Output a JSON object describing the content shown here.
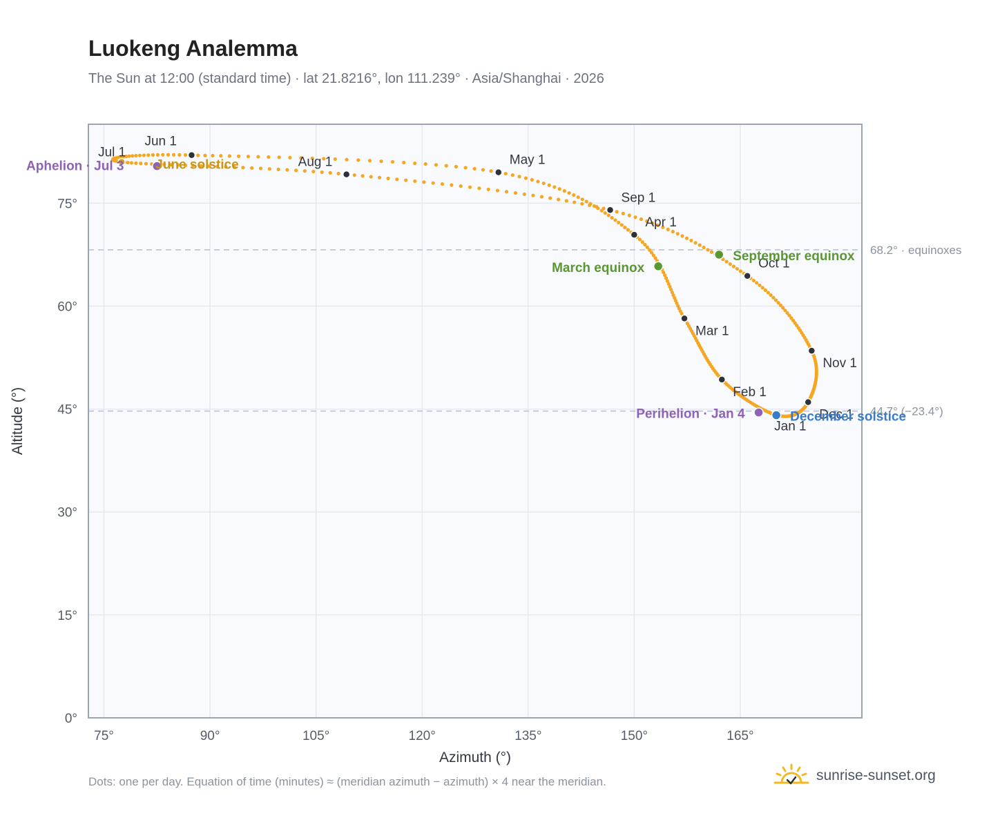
{
  "header": {
    "title": "Luokeng Analemma",
    "subtitle": "The Sun at 12:00 (standard time) · lat 21.8216°, lon 111.239° · Asia/Shanghai · 2026"
  },
  "footer": {
    "note": "Dots: one per day. Equation of time (minutes) ≈ (meridian azimuth − azimuth) × 4 near the meridian.",
    "brand": "sunrise-sunset.org",
    "brand_icon": "sun-logo-icon"
  },
  "colors": {
    "curve": "#f5a623",
    "month_marker": "#2d3139",
    "solstice_june": "#d4a017",
    "june_solstice_label": "#c9961a",
    "solstice_december": "#3a7bc8",
    "equinox": "#5a9632",
    "perihelion_aphelion": "#8e63b5",
    "plot_bg": "#f8fafd",
    "grid": "#e5e9ef",
    "frame": "#9aa4b2",
    "reference_line": "#b8c4d2"
  },
  "chart_data": {
    "type": "scatter",
    "xlabel": "Azimuth (°)",
    "ylabel": "Altitude (°)",
    "xlim": [
      72.8,
      182.2
    ],
    "ylim": [
      0,
      86.5
    ],
    "xticks": [
      75,
      90,
      105,
      120,
      135,
      150,
      165
    ],
    "xtick_labels": [
      "75°",
      "90°",
      "105°",
      "120°",
      "135°",
      "150°",
      "165°"
    ],
    "yticks": [
      0,
      15,
      30,
      45,
      60,
      75
    ],
    "ytick_labels": [
      "0°",
      "15°",
      "30°",
      "45°",
      "60°",
      "75°"
    ],
    "grid": true,
    "reference_lines": [
      {
        "y": 68.2,
        "label": "68.2° · equinoxes"
      },
      {
        "y": 44.7,
        "label": "44.7° (−23.4°)"
      }
    ],
    "series": [
      {
        "points": [
          {
            "date": "Jan 1",
            "az": 170.2,
            "alt": 44.1
          },
          {
            "date": "Feb 1",
            "az": 162.4,
            "alt": 49.3
          },
          {
            "date": "Mar 1",
            "az": 157.1,
            "alt": 58.2
          },
          {
            "date": "Apr 1",
            "az": 150.0,
            "alt": 70.4
          },
          {
            "date": "May 1",
            "az": 130.8,
            "alt": 79.5
          },
          {
            "date": "Jun 1",
            "az": 87.4,
            "alt": 82.0
          },
          {
            "date": "Jul 1",
            "az": 77.5,
            "alt": 81.0
          },
          {
            "date": "Aug 1",
            "az": 109.3,
            "alt": 79.2
          },
          {
            "date": "Sep 1",
            "az": 146.6,
            "alt": 74.0
          },
          {
            "date": "Oct 1",
            "az": 166.0,
            "alt": 64.4
          },
          {
            "date": "Nov 1",
            "az": 175.1,
            "alt": 53.5
          },
          {
            "date": "Dec 1",
            "az": 174.6,
            "alt": 46.0
          }
        ]
      }
    ],
    "events": [
      {
        "label": "June solstice",
        "az": 82.5,
        "alt": 80.4
      },
      {
        "label": "December solstice",
        "az": 170.1,
        "alt": 44.1
      },
      {
        "label": "March equinox",
        "az": 153.4,
        "alt": 65.8
      },
      {
        "label": "September equinox",
        "az": 162.0,
        "alt": 67.5
      },
      {
        "label": "Perihelion · Jan 4",
        "az": 167.6,
        "alt": 44.5
      },
      {
        "label": "Aphelion · Jul 3",
        "az": 79.0,
        "alt": 80.6
      }
    ]
  }
}
